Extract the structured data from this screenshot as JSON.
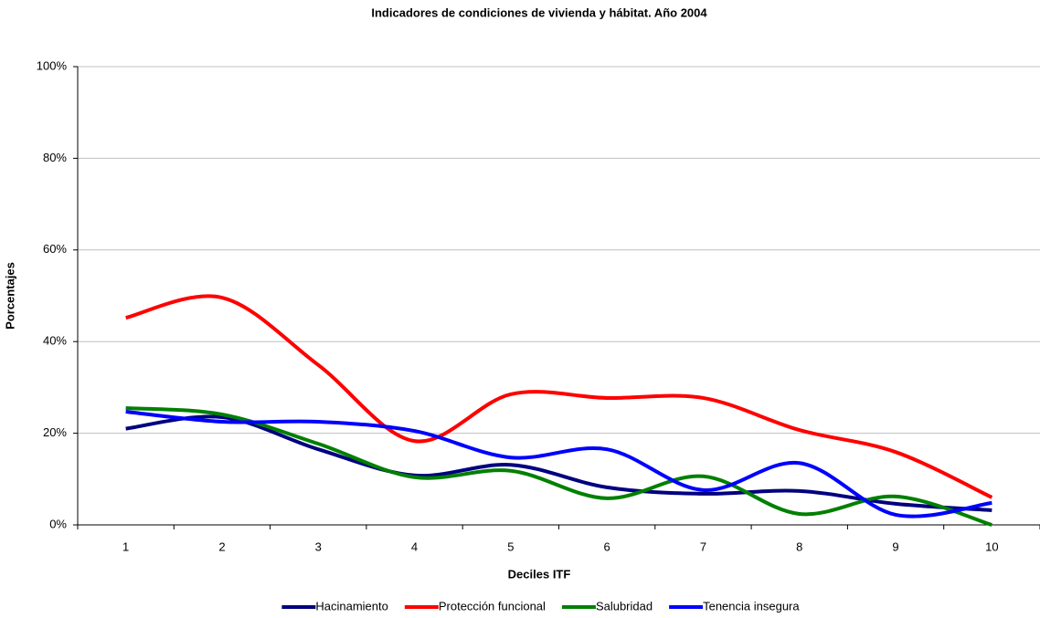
{
  "chart_data": {
    "type": "line",
    "title": "Indicadores de condiciones de vivienda y hábitat. Año 2004",
    "x_label": "Deciles ITF",
    "y_label": "Porcentajes",
    "categories": [
      "1",
      "2",
      "3",
      "4",
      "5",
      "6",
      "7",
      "8",
      "9",
      "10"
    ],
    "series": [
      {
        "name": "Hacinamiento",
        "color": "#000080",
        "values": [
          21,
          23.5,
          16.5,
          10.8,
          13.1,
          8.2,
          6.8,
          7.4,
          4.6,
          3.2
        ]
      },
      {
        "name": "Protección funcional",
        "color": "#ff0000",
        "values": [
          45.2,
          49.6,
          34.9,
          18.3,
          28.5,
          27.7,
          27.7,
          20.7,
          15.9,
          6
        ]
      },
      {
        "name": "Salubridad",
        "color": "#008000",
        "values": [
          25.5,
          24.1,
          17.7,
          10.4,
          11.8,
          5.8,
          10.6,
          2.4,
          6.2,
          0
        ]
      },
      {
        "name": "Tenencia insegura",
        "color": "#0000ff",
        "values": [
          24.7,
          22.5,
          22.5,
          20.5,
          14.7,
          16.5,
          7.6,
          13.5,
          2.2,
          4.8
        ]
      }
    ],
    "ylim": [
      0,
      100
    ],
    "yticks": [
      {
        "value": 0,
        "label": "0%"
      },
      {
        "value": 20,
        "label": "20%"
      },
      {
        "value": 40,
        "label": "40%"
      },
      {
        "value": 60,
        "label": "60%"
      },
      {
        "value": 80,
        "label": "80%"
      },
      {
        "value": 100,
        "label": "100%"
      }
    ],
    "grid": true,
    "smooth": true,
    "legend": "bottom"
  }
}
